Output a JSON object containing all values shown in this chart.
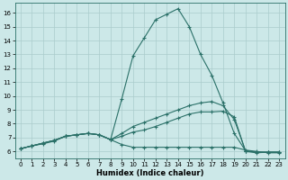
{
  "bg_color": "#cce8e8",
  "grid_color": "#aacccc",
  "line_color": "#2a7068",
  "xlabel": "Humidex (Indice chaleur)",
  "xlim": [
    -0.5,
    23.5
  ],
  "ylim": [
    5.5,
    16.7
  ],
  "yticks": [
    6,
    7,
    8,
    9,
    10,
    11,
    12,
    13,
    14,
    15,
    16
  ],
  "xticks": [
    0,
    1,
    2,
    3,
    4,
    5,
    6,
    7,
    8,
    9,
    10,
    11,
    12,
    13,
    14,
    15,
    16,
    17,
    18,
    19,
    20,
    21,
    22,
    23
  ],
  "lines": [
    [
      6.2,
      6.4,
      6.55,
      6.75,
      7.1,
      7.2,
      7.3,
      7.2,
      6.85,
      6.5,
      6.3,
      6.3,
      6.3,
      6.3,
      6.3,
      6.3,
      6.3,
      6.3,
      6.3,
      6.3,
      6.1,
      6.0,
      5.9,
      5.9
    ],
    [
      6.2,
      6.4,
      6.6,
      6.8,
      7.1,
      7.2,
      7.3,
      7.2,
      6.85,
      7.1,
      7.4,
      7.55,
      7.8,
      8.1,
      8.4,
      8.7,
      8.85,
      8.85,
      8.9,
      8.5,
      6.0,
      5.9,
      5.95,
      5.95
    ],
    [
      6.2,
      6.4,
      6.6,
      6.8,
      7.1,
      7.2,
      7.3,
      7.2,
      6.85,
      7.3,
      7.8,
      8.1,
      8.4,
      8.7,
      9.0,
      9.3,
      9.5,
      9.6,
      9.3,
      8.3,
      6.05,
      5.95,
      5.95,
      5.95
    ],
    [
      6.2,
      6.4,
      6.6,
      6.8,
      7.1,
      7.2,
      7.3,
      7.2,
      6.85,
      9.8,
      12.9,
      14.2,
      15.5,
      15.9,
      16.3,
      15.0,
      13.0,
      11.5,
      9.5,
      7.3,
      6.05,
      5.95,
      5.95,
      5.95
    ]
  ]
}
